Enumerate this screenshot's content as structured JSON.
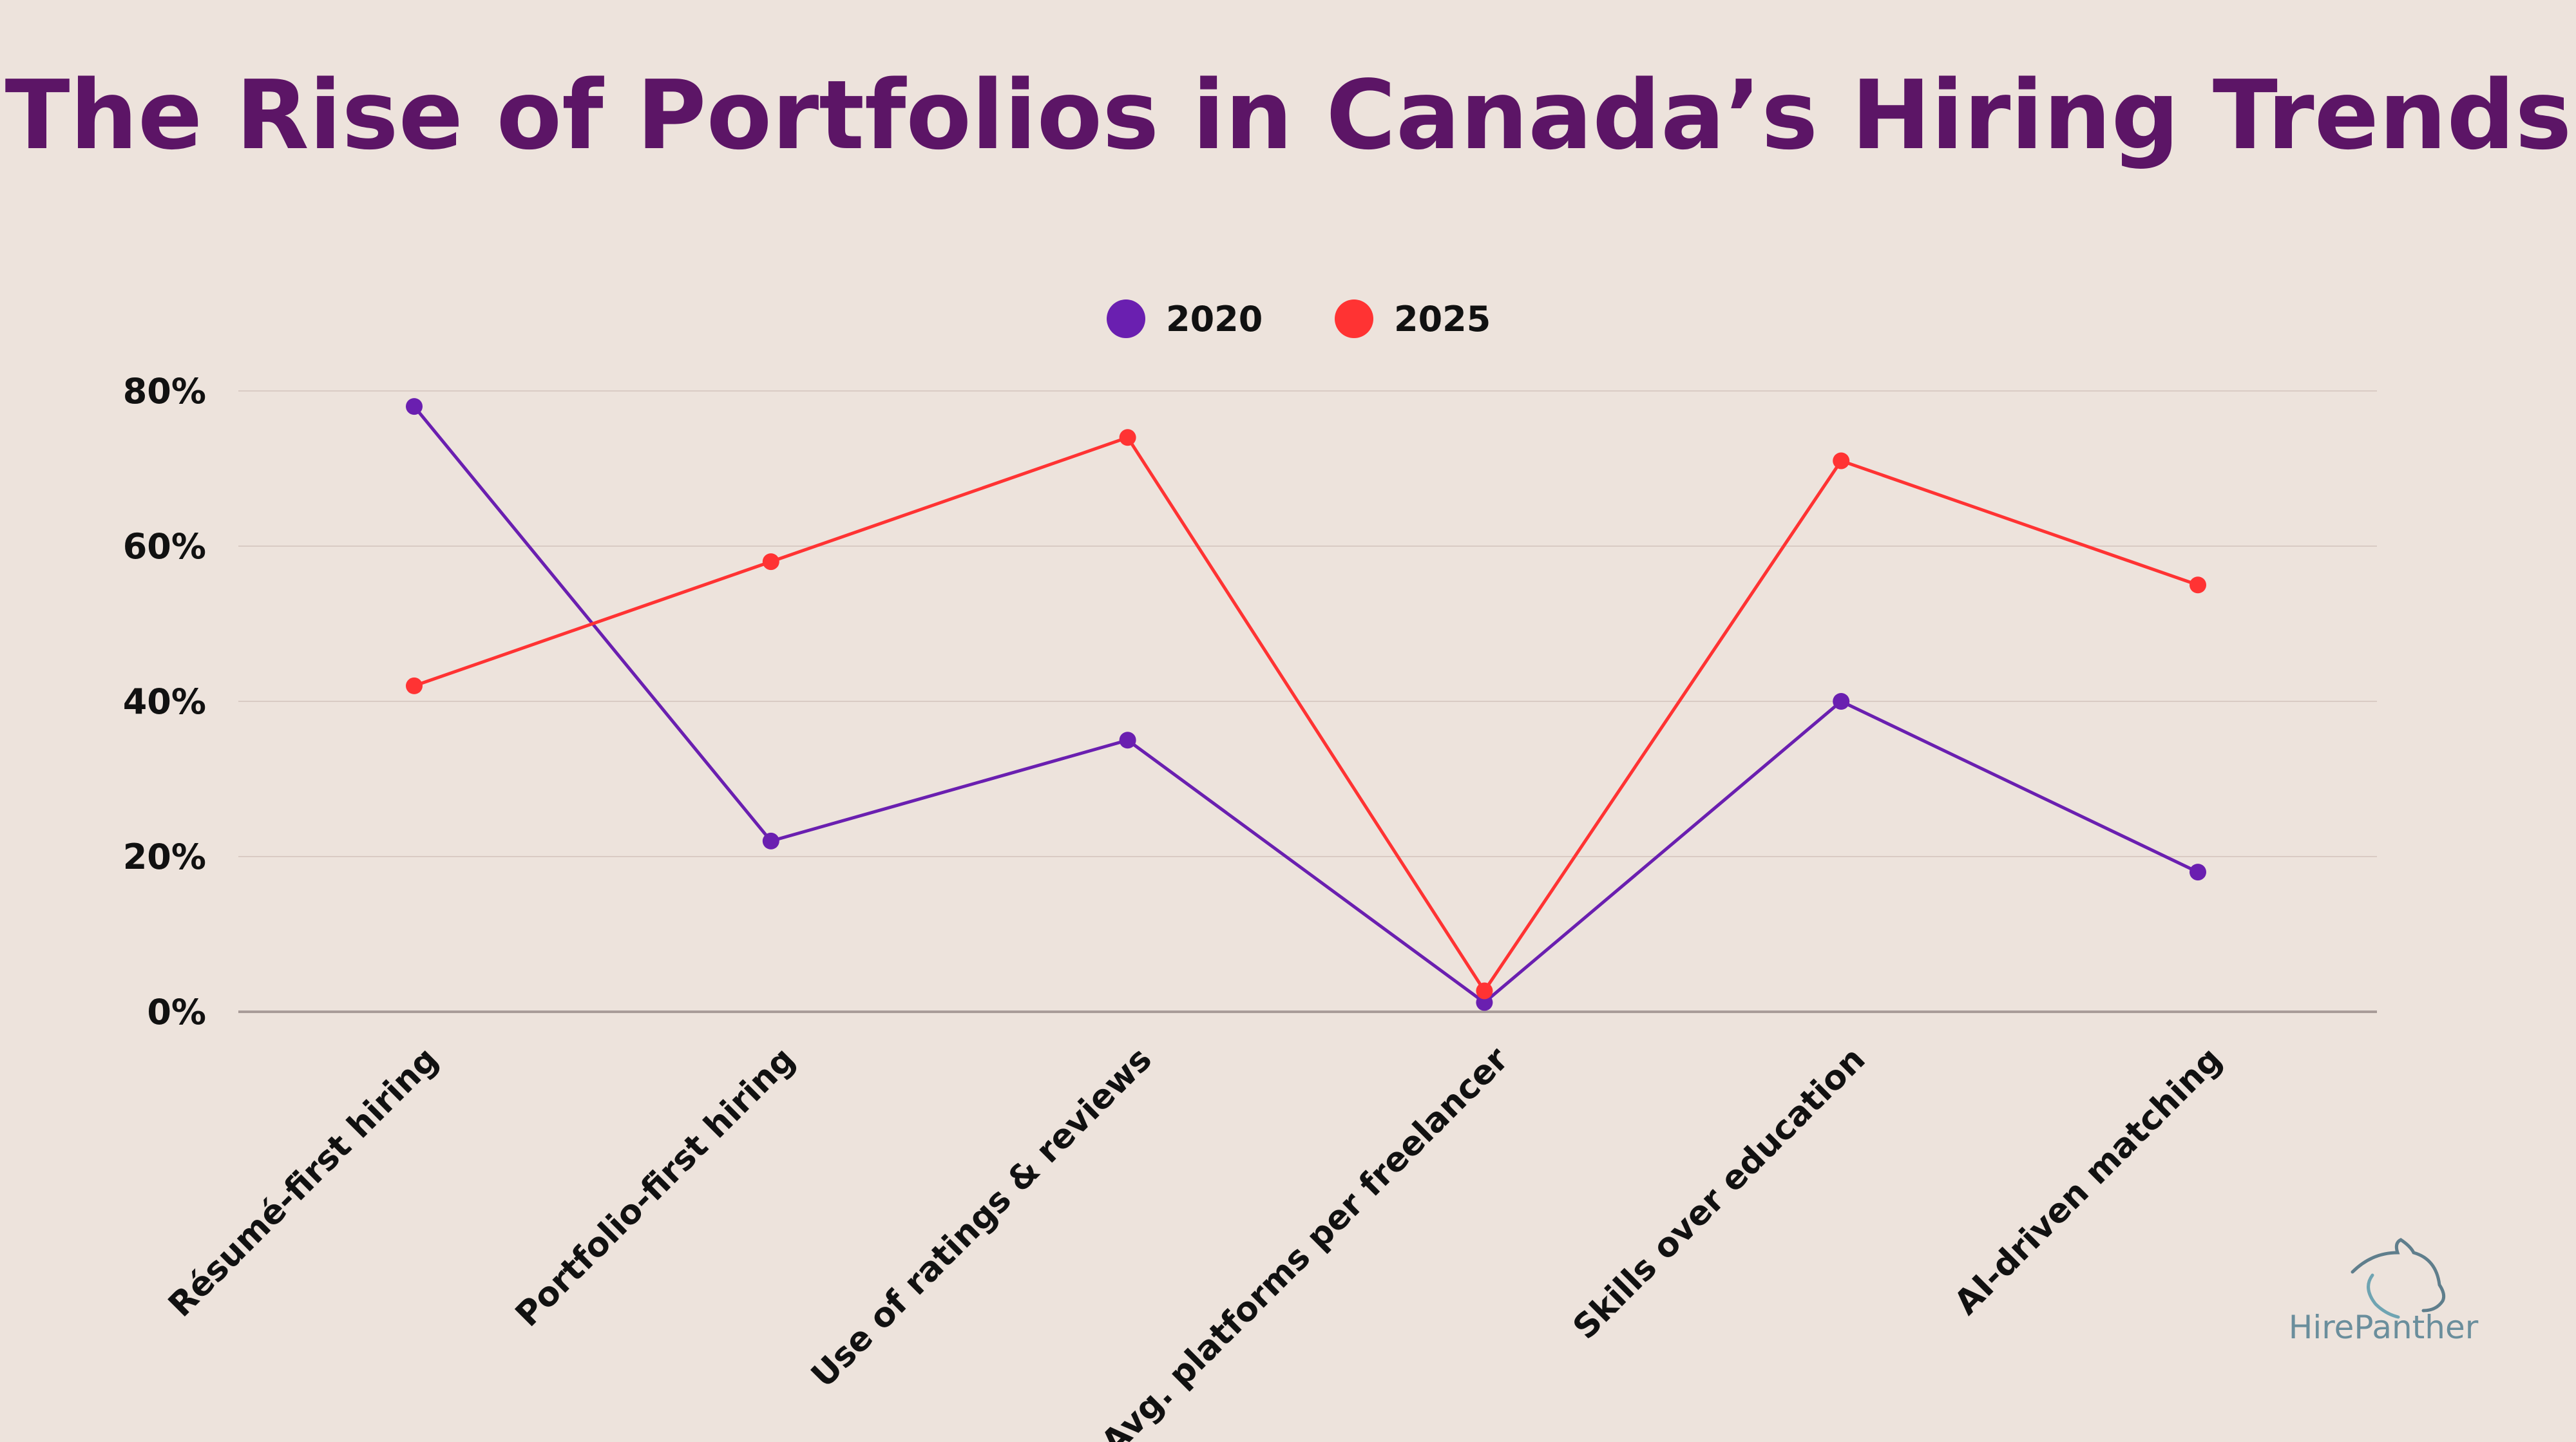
{
  "chart_data": {
    "type": "line",
    "title": "The Rise of Portfolios in Canada’s Hiring Trends",
    "categories": [
      "Résumé-first hiring",
      "Portfolio-first hiring",
      "Use of ratings & reviews",
      "Avg. platforms per freelancer",
      "Skills over education",
      "AI-driven matching"
    ],
    "series": [
      {
        "name": "2020",
        "color": "#6a1fb0",
        "values": [
          78,
          22,
          35,
          1.2,
          40,
          18
        ]
      },
      {
        "name": "2025",
        "color": "#ff3333",
        "values": [
          42,
          58,
          74,
          2.7,
          71,
          55
        ]
      }
    ],
    "ylim": [
      0,
      80
    ],
    "yticks": [
      0,
      20,
      40,
      60,
      80
    ],
    "ytick_labels": [
      "0%",
      "20%",
      "40%",
      "60%",
      "80%"
    ],
    "grid": true,
    "legend": "top-center"
  },
  "branding": {
    "logo_text": "HirePanther",
    "logo_icon": "panther-head-icon"
  }
}
